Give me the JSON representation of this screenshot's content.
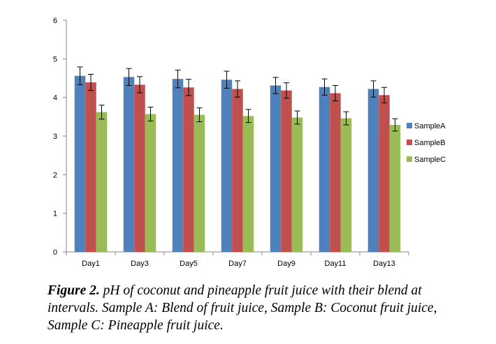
{
  "chart_data": {
    "type": "bar",
    "title": "",
    "xlabel": "",
    "ylabel": "",
    "ylim": [
      0,
      6
    ],
    "yticks": [
      0,
      1,
      2,
      3,
      4,
      5,
      6
    ],
    "grid": false,
    "legend_position": "right",
    "categories": [
      "Day1",
      "Day3",
      "Day5",
      "Day7",
      "Day9",
      "Day11",
      "Day13"
    ],
    "series": [
      {
        "name": "SampleA",
        "color": "#4f81bd",
        "values": [
          4.56,
          4.53,
          4.48,
          4.46,
          4.31,
          4.27,
          4.22
        ],
        "errors": [
          0.23,
          0.22,
          0.23,
          0.22,
          0.21,
          0.21,
          0.21
        ]
      },
      {
        "name": "SampleB",
        "color": "#c0504d",
        "values": [
          4.39,
          4.33,
          4.26,
          4.22,
          4.18,
          4.11,
          4.06
        ],
        "errors": [
          0.21,
          0.21,
          0.21,
          0.21,
          0.2,
          0.2,
          0.2
        ]
      },
      {
        "name": "SampleC",
        "color": "#9bbb59",
        "values": [
          3.62,
          3.57,
          3.55,
          3.52,
          3.48,
          3.46,
          3.29
        ],
        "errors": [
          0.18,
          0.18,
          0.18,
          0.17,
          0.17,
          0.17,
          0.16
        ]
      }
    ]
  },
  "caption": {
    "label": "Figure 2.",
    "text": " pH of coconut and pineapple fruit juice with their blend at intervals. Sample A: Blend of fruit juice, Sample B: Coconut fruit juice, Sample C: Pineapple fruit juice."
  }
}
